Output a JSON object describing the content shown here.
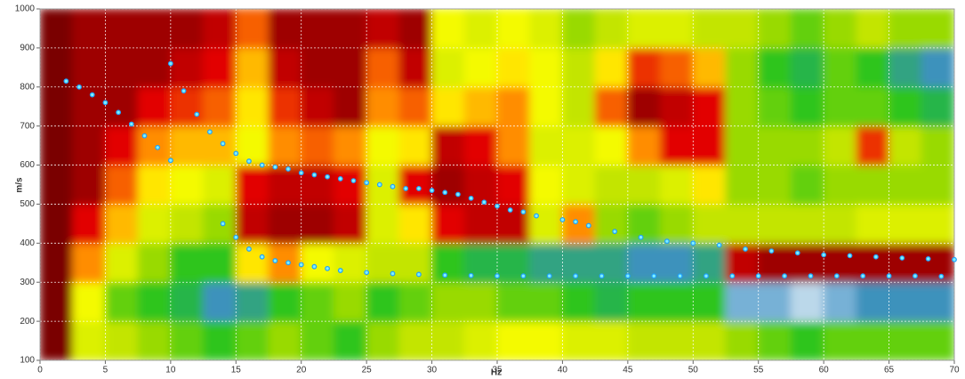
{
  "chart_data": {
    "type": "heatmap",
    "xlabel": "Hz",
    "ylabel": "m/s",
    "xlim": [
      0,
      70
    ],
    "ylim": [
      100,
      1000
    ],
    "xticks": [
      0,
      5,
      10,
      15,
      20,
      25,
      30,
      35,
      40,
      45,
      50,
      55,
      60,
      65,
      70
    ],
    "yticks": [
      100,
      200,
      300,
      400,
      500,
      600,
      700,
      800,
      900,
      1000
    ],
    "grid": true,
    "colorscale": [
      "#ffffff",
      "#3d8fc4",
      "#1fc21f",
      "#b8e000",
      "#ffff00",
      "#ff8000",
      "#e00000",
      "#7a0000"
    ],
    "x_edges": [
      0,
      2.5,
      5,
      7.5,
      10,
      12.5,
      15,
      17.5,
      20,
      22.5,
      25,
      27.5,
      30,
      32.5,
      35,
      37.5,
      40,
      42.5,
      45,
      47.5,
      50,
      52.5,
      55,
      57.5,
      60,
      62.5,
      65,
      67.5,
      70
    ],
    "y_edges": [
      100,
      200,
      300,
      400,
      500,
      600,
      700,
      800,
      900,
      1000
    ],
    "z": [
      [
        1,
        0.5,
        0.45,
        0.4,
        0.35,
        0.3,
        0.35,
        0.4,
        0.35,
        0.3,
        0.4,
        0.45,
        0.45,
        0.5,
        0.55,
        0.55,
        0.5,
        0.5,
        0.45,
        0.45,
        0.45,
        0.4,
        0.35,
        0.3,
        0.35,
        0.35,
        0.35,
        0.35
      ],
      [
        1,
        0.55,
        0.35,
        0.3,
        0.25,
        0.15,
        0.2,
        0.3,
        0.35,
        0.4,
        0.3,
        0.35,
        0.4,
        0.4,
        0.35,
        0.35,
        0.3,
        0.25,
        0.3,
        0.3,
        0.3,
        0.1,
        0.1,
        0.05,
        0.1,
        0.15,
        0.15,
        0.15
      ],
      [
        1,
        0.7,
        0.5,
        0.4,
        0.3,
        0.3,
        0.6,
        0.7,
        0.55,
        0.5,
        0.45,
        0.45,
        0.3,
        0.25,
        0.25,
        0.2,
        0.2,
        0.2,
        0.15,
        0.15,
        0.2,
        0.9,
        0.95,
        0.95,
        0.95,
        0.95,
        0.95,
        0.95
      ],
      [
        1,
        0.85,
        0.65,
        0.5,
        0.45,
        0.4,
        0.9,
        0.95,
        0.95,
        0.9,
        0.5,
        0.6,
        0.85,
        0.9,
        0.9,
        0.5,
        0.7,
        0.4,
        0.35,
        0.4,
        0.45,
        0.45,
        0.45,
        0.45,
        0.45,
        0.5,
        0.5,
        0.5
      ],
      [
        1,
        0.95,
        0.75,
        0.6,
        0.55,
        0.5,
        0.85,
        0.9,
        0.9,
        0.85,
        0.5,
        0.85,
        0.95,
        0.9,
        0.85,
        0.55,
        0.5,
        0.45,
        0.45,
        0.5,
        0.6,
        0.4,
        0.4,
        0.35,
        0.4,
        0.4,
        0.4,
        0.4
      ],
      [
        1,
        0.95,
        0.85,
        0.7,
        0.65,
        0.65,
        0.55,
        0.7,
        0.75,
        0.7,
        0.55,
        0.6,
        0.9,
        0.85,
        0.7,
        0.5,
        0.5,
        0.55,
        0.7,
        0.85,
        0.85,
        0.4,
        0.4,
        0.4,
        0.45,
        0.8,
        0.45,
        0.4
      ],
      [
        1,
        0.95,
        0.95,
        0.85,
        0.8,
        0.75,
        0.6,
        0.8,
        0.9,
        0.95,
        0.7,
        0.75,
        0.6,
        0.65,
        0.7,
        0.55,
        0.45,
        0.75,
        0.95,
        0.9,
        0.85,
        0.4,
        0.35,
        0.3,
        0.35,
        0.35,
        0.3,
        0.25
      ],
      [
        1,
        0.95,
        0.95,
        0.95,
        0.9,
        0.85,
        0.65,
        0.9,
        0.95,
        0.95,
        0.75,
        0.9,
        0.5,
        0.55,
        0.6,
        0.55,
        0.45,
        0.6,
        0.8,
        0.75,
        0.65,
        0.4,
        0.3,
        0.25,
        0.35,
        0.3,
        0.2,
        0.15
      ],
      [
        1,
        0.95,
        0.95,
        0.95,
        0.95,
        0.9,
        0.75,
        0.95,
        0.95,
        0.95,
        0.9,
        0.95,
        0.55,
        0.5,
        0.55,
        0.5,
        0.4,
        0.45,
        0.5,
        0.5,
        0.45,
        0.45,
        0.4,
        0.35,
        0.4,
        0.45,
        0.4,
        0.4
      ]
    ],
    "series": [
      {
        "color": "#1ea0ff",
        "x": [
          2,
          3,
          4,
          5,
          6,
          7,
          8,
          9,
          10,
          14,
          15,
          16,
          17,
          18,
          19,
          20,
          21,
          22,
          23,
          24,
          25,
          26,
          27,
          28,
          29,
          30,
          31,
          32,
          33,
          34,
          35,
          36,
          37,
          38,
          40,
          41,
          42,
          44,
          46,
          48,
          50,
          52,
          54,
          56,
          58,
          60,
          62,
          64,
          66,
          68,
          70
        ],
        "y": [
          815,
          800,
          780,
          760,
          735,
          705,
          675,
          645,
          612,
          655,
          630,
          610,
          600,
          595,
          590,
          580,
          575,
          570,
          565,
          560,
          555,
          550,
          545,
          540,
          540,
          535,
          530,
          525,
          515,
          505,
          495,
          485,
          480,
          470,
          460,
          455,
          445,
          430,
          415,
          405,
          400,
          395,
          385,
          380,
          375,
          370,
          368,
          365,
          362,
          360,
          358
        ]
      },
      {
        "color": "#1ea0ff",
        "x": [
          10,
          11,
          12,
          13,
          14,
          15,
          16,
          17,
          18,
          19,
          20,
          21,
          22,
          23,
          25,
          27,
          29,
          31,
          33,
          35,
          37,
          39,
          41,
          43,
          45,
          47,
          49,
          51,
          53,
          55,
          57,
          59,
          61,
          63,
          65,
          67,
          69
        ],
        "y": [
          860,
          790,
          730,
          685,
          450,
          415,
          385,
          365,
          355,
          350,
          345,
          340,
          335,
          330,
          325,
          322,
          320,
          318,
          317,
          316,
          316,
          316,
          316,
          316,
          316,
          316,
          316,
          316,
          316,
          316,
          316,
          316,
          316,
          316,
          316,
          316,
          315
        ]
      }
    ]
  }
}
